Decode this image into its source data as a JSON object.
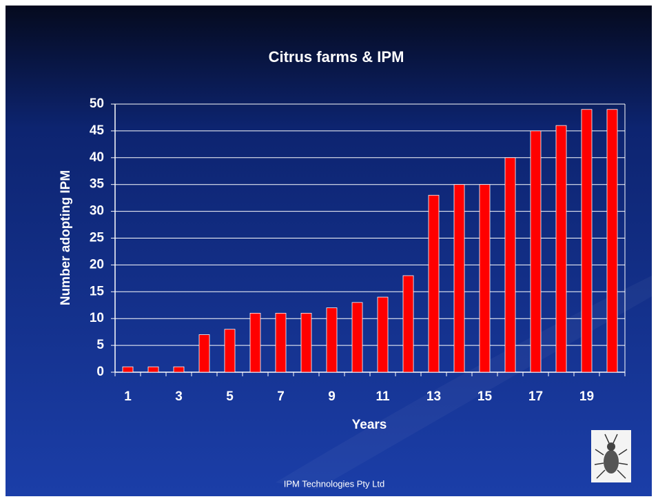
{
  "chart_data": {
    "type": "bar",
    "title": "Citrus farms & IPM",
    "x_label": "Years",
    "y_label": "Number adopting IPM",
    "categories": [
      "1",
      null,
      "3",
      null,
      "5",
      null,
      "7",
      null,
      "9",
      null,
      "11",
      null,
      "13",
      null,
      "15",
      null,
      "17",
      null,
      "19",
      null
    ],
    "values": [
      1,
      1,
      1,
      7,
      8,
      11,
      11,
      11,
      12,
      13,
      14,
      18,
      33,
      35,
      35,
      40,
      45,
      46,
      49,
      49
    ],
    "color": "#ff0000",
    "ylim": [
      0,
      50
    ],
    "yticks": [
      0,
      5,
      10,
      15,
      20,
      25,
      30,
      35,
      40,
      45,
      50
    ],
    "grid": true
  },
  "footer": "IPM Technologies Pty Ltd"
}
